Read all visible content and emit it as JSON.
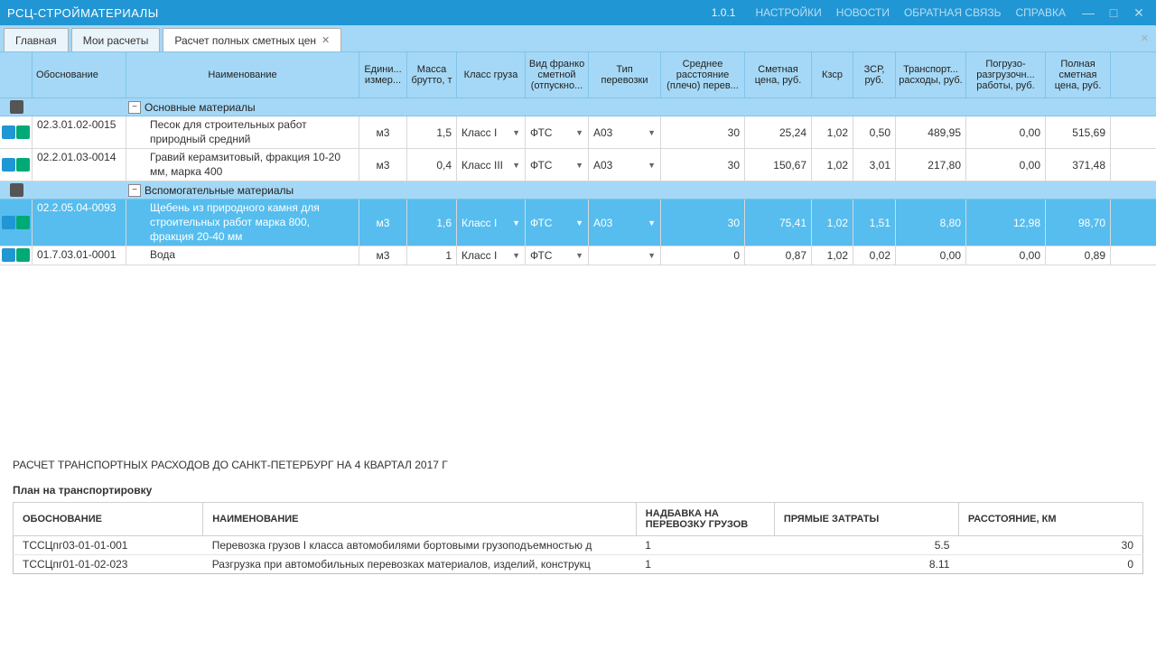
{
  "titlebar": {
    "app_title": "РСЦ-СТРОЙМАТЕРИАЛЫ",
    "version": "1.0.1",
    "menu": [
      "НАСТРОЙКИ",
      "НОВОСТИ",
      "ОБРАТНАЯ СВЯЗЬ",
      "СПРАВКА"
    ],
    "min": "—",
    "max": "□",
    "close": "✕"
  },
  "tabs": [
    {
      "label": "Главная",
      "closable": false
    },
    {
      "label": "Мои расчеты",
      "closable": false
    },
    {
      "label": "Расчет полных сметных цен",
      "closable": true,
      "active": true
    }
  ],
  "columns": [
    "",
    "Обоснование",
    "Наименование",
    "Едини... измер...",
    "Масса брутто, т",
    "Класс груза",
    "Вид франко сметной (отпускно...",
    "Тип перевозки",
    "Среднее расстояние (плечо) перев...",
    "Сметная цена, руб.",
    "Кзср",
    "ЗСР, руб.",
    "Транспорт... расходы, руб.",
    "Погрузо-разгрузочн... работы, руб.",
    "Полная сметная цена, руб."
  ],
  "groups": [
    {
      "title": "Основные материалы",
      "rows": [
        {
          "code": "02.3.01.02-0015",
          "name": "Песок для строительных работ природный средний",
          "unit": "м3",
          "mass": "1,5",
          "class": "Класс I",
          "franko": "ФТС",
          "tiptrans": "А03",
          "dist": "30",
          "smet": "25,24",
          "kzsr": "1,02",
          "zsr": "0,50",
          "transp": "489,95",
          "pogr": "0,00",
          "full": "515,69"
        },
        {
          "code": "02.2.01.03-0014",
          "name": "Гравий керамзитовый, фракция 10-20 мм, марка 400",
          "unit": "м3",
          "mass": "0,4",
          "class": "Класс III",
          "franko": "ФТС",
          "tiptrans": "А03",
          "dist": "30",
          "smet": "150,67",
          "kzsr": "1,02",
          "zsr": "3,01",
          "transp": "217,80",
          "pogr": "0,00",
          "full": "371,48"
        }
      ]
    },
    {
      "title": "Вспомогательные материалы",
      "rows": [
        {
          "sel": true,
          "code": "02.2.05.04-0093",
          "name": "Щебень из природного камня для строительных работ марка 800, фракция 20-40 мм",
          "unit": "м3",
          "mass": "1,6",
          "class": "Класс I",
          "franko": "ФТС",
          "tiptrans": "А03",
          "dist": "30",
          "smet": "75,41",
          "kzsr": "1,02",
          "zsr": "1,51",
          "transp": "8,80",
          "pogr": "12,98",
          "full": "98,70"
        },
        {
          "code": "01.7.03.01-0001",
          "name": "Вода",
          "unit": "м3",
          "mass": "1",
          "class": "Класс I",
          "franko": "ФТС",
          "tiptrans": "",
          "dist": "0",
          "smet": "0,87",
          "kzsr": "1,02",
          "zsr": "0,02",
          "transp": "0,00",
          "pogr": "0,00",
          "full": "0,89"
        }
      ]
    }
  ],
  "bottom": {
    "title": "РАСЧЕТ ТРАНСПОРТНЫХ РАСХОДОВ ДО САНКТ-ПЕТЕРБУРГ НА 4 КВАРТАЛ 2017 Г",
    "subtitle": "План на транспортировку",
    "headers": [
      "ОБОСНОВАНИЕ",
      "НАИМЕНОВАНИЕ",
      "НАДБАВКА НА ПЕРЕВОЗКУ ГРУЗОВ",
      "ПРЯМЫЕ ЗАТРАТЫ",
      "РАССТОЯНИЕ, КМ"
    ],
    "rows": [
      {
        "code": "ТССЦпг03-01-01-001",
        "name": "Перевозка грузов I класса автомобилями бортовыми грузоподъемностью д",
        "nadb": "1",
        "pz": "5.5",
        "dist": "30"
      },
      {
        "code": "ТССЦпг01-01-02-023",
        "name": "Разгрузка при автомобильных перевозках материалов, изделий, конструкц",
        "nadb": "1",
        "pz": "8.11",
        "dist": "0"
      }
    ]
  }
}
